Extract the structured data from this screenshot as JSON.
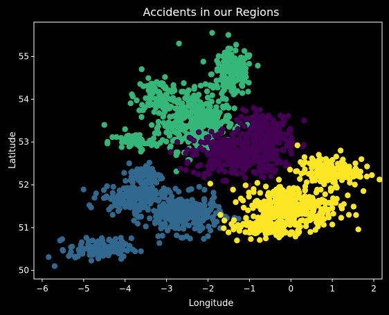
{
  "chart_data": {
    "type": "scatter",
    "title": "Accidents in our Regions",
    "xlabel": "Longitude",
    "ylabel": "Latitude",
    "xlim": [
      -6.2,
      2.2
    ],
    "ylim": [
      49.8,
      55.8
    ],
    "xticks": [
      -6,
      -5,
      -4,
      -3,
      -2,
      -1,
      0,
      1,
      2
    ],
    "yticks": [
      50,
      51,
      52,
      53,
      54,
      55
    ],
    "grid": false,
    "legend": "none",
    "background": "#000000",
    "series": [
      {
        "color": "#35b779",
        "regions": [
          {
            "center": [
              -2.3,
              53.5
            ],
            "radius": [
              0.9,
              0.7
            ],
            "count": 320
          },
          {
            "center": [
              -1.4,
              54.6
            ],
            "radius": [
              0.5,
              0.55
            ],
            "count": 160
          },
          {
            "center": [
              -3.2,
              54.1
            ],
            "radius": [
              0.55,
              0.35
            ],
            "count": 80
          },
          {
            "center": [
              -3.8,
              53.0
            ],
            "radius": [
              0.6,
              0.2
            ],
            "count": 55
          }
        ],
        "sample_points": [
          [
            -4.0,
            53.3
          ],
          [
            -4.5,
            53.4
          ],
          [
            -3.6,
            54.7
          ],
          [
            -2.7,
            55.3
          ],
          [
            -1.9,
            55.55
          ],
          [
            -1.1,
            54.6
          ],
          [
            -2.9,
            52.9
          ],
          [
            -3.3,
            53.7
          ]
        ]
      },
      {
        "color": "#440154",
        "regions": [
          {
            "center": [
              -1.3,
              52.7
            ],
            "radius": [
              1.1,
              0.55
            ],
            "count": 330
          },
          {
            "center": [
              -0.6,
              53.2
            ],
            "radius": [
              0.7,
              0.5
            ],
            "count": 170
          }
        ],
        "sample_points": [
          [
            -2.5,
            52.5
          ],
          [
            -0.9,
            53.8
          ],
          [
            -0.2,
            53.4
          ],
          [
            0.3,
            52.9
          ],
          [
            -1.6,
            52.1
          ],
          [
            -0.4,
            52.3
          ]
        ]
      },
      {
        "color": "#31688e",
        "regions": [
          {
            "center": [
              -2.6,
              51.3
            ],
            "radius": [
              0.9,
              0.45
            ],
            "count": 260
          },
          {
            "center": [
              -3.8,
              51.7
            ],
            "radius": [
              0.8,
              0.3
            ],
            "count": 150
          },
          {
            "center": [
              -4.6,
              50.5
            ],
            "radius": [
              0.75,
              0.25
            ],
            "count": 120
          },
          {
            "center": [
              -3.5,
              52.2
            ],
            "radius": [
              0.4,
              0.3
            ],
            "count": 60
          }
        ],
        "sample_points": [
          [
            -5.7,
            50.1
          ],
          [
            -5.2,
            50.3
          ],
          [
            -4.7,
            51.8
          ],
          [
            -4.3,
            51.3
          ],
          [
            -3.2,
            50.8
          ],
          [
            -2.0,
            50.8
          ],
          [
            -2.4,
            51.9
          ],
          [
            -3.9,
            52.5
          ]
        ]
      },
      {
        "color": "#fde725",
        "regions": [
          {
            "center": [
              0.0,
              51.5
            ],
            "radius": [
              1.15,
              0.5
            ],
            "count": 340
          },
          {
            "center": [
              0.9,
              52.3
            ],
            "radius": [
              0.75,
              0.35
            ],
            "count": 160
          },
          {
            "center": [
              -0.6,
              51.0
            ],
            "radius": [
              0.9,
              0.25
            ],
            "count": 120
          }
        ],
        "sample_points": [
          [
            -1.7,
            51.3
          ],
          [
            -1.3,
            50.7
          ],
          [
            1.7,
            52.6
          ],
          [
            1.2,
            52.8
          ],
          [
            1.4,
            51.3
          ],
          [
            0.8,
            51.2
          ],
          [
            0.2,
            50.9
          ],
          [
            -0.9,
            51.9
          ]
        ]
      }
    ]
  }
}
